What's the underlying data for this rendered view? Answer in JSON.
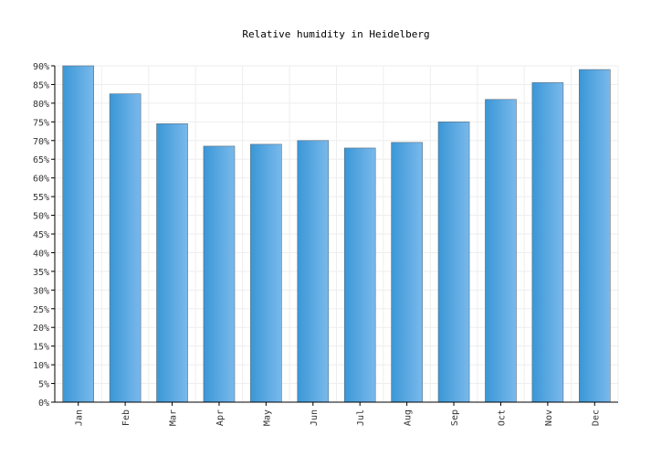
{
  "chart_data": {
    "type": "bar",
    "title": "Relative humidity in Heidelberg",
    "xlabel": "",
    "ylabel": "",
    "categories": [
      "Jan",
      "Feb",
      "Mar",
      "Apr",
      "May",
      "Jun",
      "Jul",
      "Aug",
      "Sep",
      "Oct",
      "Nov",
      "Dec"
    ],
    "values": [
      90,
      82.5,
      74.5,
      68.5,
      69,
      70,
      68,
      69.5,
      75,
      81,
      85.5,
      89
    ],
    "ylim": [
      0,
      90
    ],
    "yticks": [
      "0%",
      "5%",
      "10%",
      "15%",
      "20%",
      "25%",
      "30%",
      "35%",
      "40%",
      "45%",
      "50%",
      "55%",
      "60%",
      "65%",
      "70%",
      "75%",
      "80%",
      "85%",
      "90%"
    ],
    "grid": true,
    "bar_color": "#4da3dd"
  }
}
